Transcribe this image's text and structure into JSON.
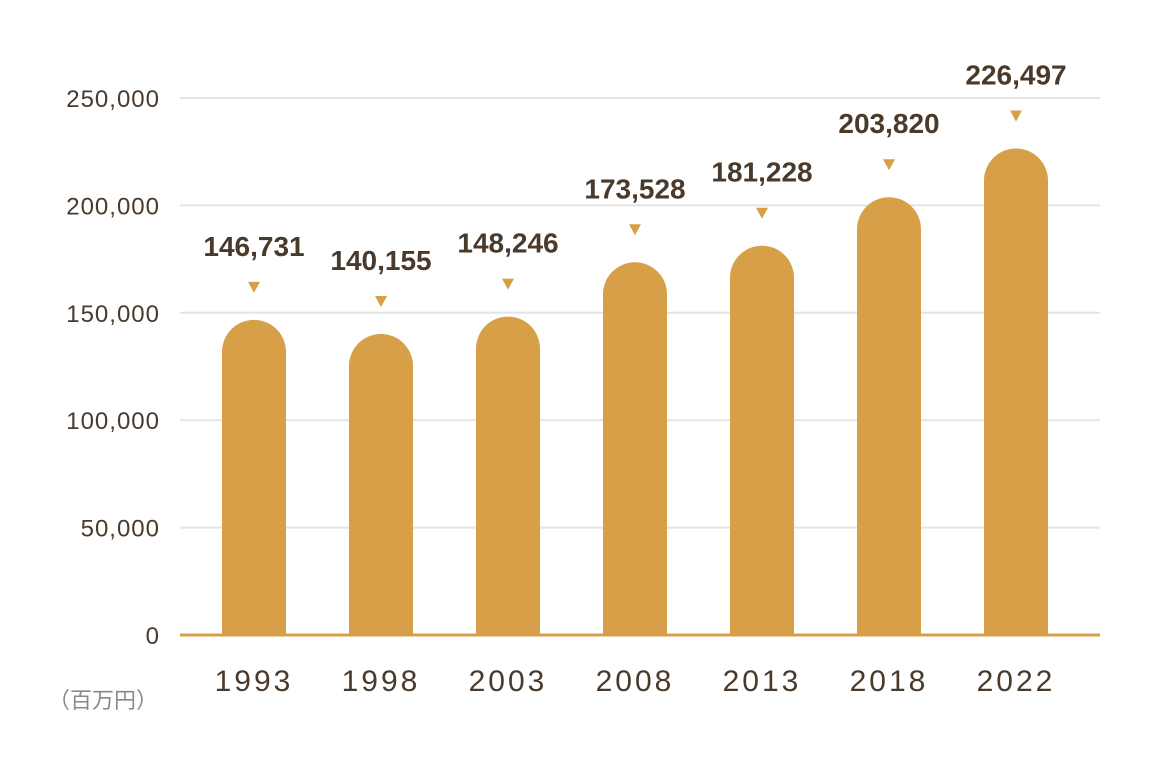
{
  "chart_data": {
    "type": "bar",
    "categories": [
      "1993",
      "1998",
      "2003",
      "2008",
      "2013",
      "2018",
      "2022"
    ],
    "values": [
      146731,
      140155,
      148246,
      173528,
      181228,
      203820,
      226497
    ],
    "data_labels": [
      "146,731",
      "140,155",
      "148,246",
      "173,528",
      "181,228",
      "203,820",
      "226,497"
    ],
    "title": "",
    "xlabel": "",
    "ylabel": "",
    "unit_label": "（百万円）",
    "ylim": [
      0,
      250000
    ],
    "yticks": [
      0,
      50000,
      100000,
      150000,
      200000,
      250000
    ],
    "ytick_labels": [
      "0",
      "50,000",
      "100,000",
      "150,000",
      "200,000",
      "250,000"
    ],
    "grid": true,
    "legend": "none",
    "colors": {
      "bar": "#d69f48",
      "marker": "#d69f48",
      "grid": "#e4e4e4",
      "axis": "#d69f48",
      "text": "#4a3a2c"
    }
  }
}
